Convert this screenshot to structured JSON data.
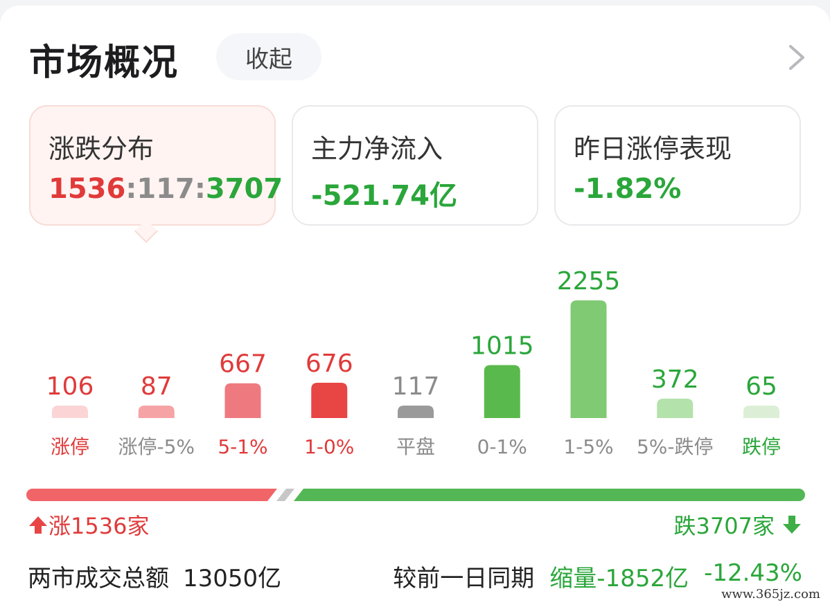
{
  "header": {
    "title": "市场概况",
    "collapse_label": "收起"
  },
  "stats": {
    "distribution": {
      "label": "涨跌分布",
      "up": "1536",
      "flat": "117",
      "down": "3707",
      "sep": ":"
    },
    "main_flow": {
      "label": "主力净流入",
      "value": "-521.74亿"
    },
    "yesterday_limit": {
      "label": "昨日涨停表现",
      "value": "-1.82%"
    }
  },
  "chart_data": {
    "type": "bar",
    "categories": [
      "涨停",
      "涨停-5%",
      "5-1%",
      "1-0%",
      "平盘",
      "0-1%",
      "1-5%",
      "5%-跌停",
      "跌停"
    ],
    "values": [
      106,
      87,
      667,
      676,
      117,
      1015,
      2255,
      372,
      65
    ],
    "value_labels": [
      "106",
      "87",
      "667",
      "676",
      "117",
      "1015",
      "2255",
      "372",
      "65"
    ],
    "colors": [
      "#fbd5d5",
      "#f6a3a6",
      "#ee7a7f",
      "#e84545",
      "#9a9a9a",
      "#5ab94c",
      "#7fca72",
      "#b4e2ab",
      "#dcefd6"
    ],
    "label_colors": [
      "#e03a3a",
      "#8b8b8b",
      "#e03a3a",
      "#e03a3a",
      "#8b8b8b",
      "#8b8b8b",
      "#8b8b8b",
      "#8b8b8b",
      "#2aa63a"
    ],
    "value_colors": [
      "#e03a3a",
      "#e03a3a",
      "#e03a3a",
      "#e03a3a",
      "#8b8b8b",
      "#2aa63a",
      "#2aa63a",
      "#2aa63a",
      "#2aa63a"
    ]
  },
  "ratio_bar": {
    "up": 1536,
    "flat": 117,
    "down": 3707,
    "up_color": "#f16468",
    "flat_color": "#c7c7c7",
    "down_color": "#52b754"
  },
  "summary": {
    "up_label": "涨1536家",
    "down_label": "跌3707家"
  },
  "footer": {
    "turnover_label": "两市成交总额",
    "turnover_value": "13050亿",
    "compare_label": "较前一日同期",
    "change_amount": "缩量-1852亿",
    "change_pct": "-12.43%"
  },
  "watermark": "www.365jz.com"
}
